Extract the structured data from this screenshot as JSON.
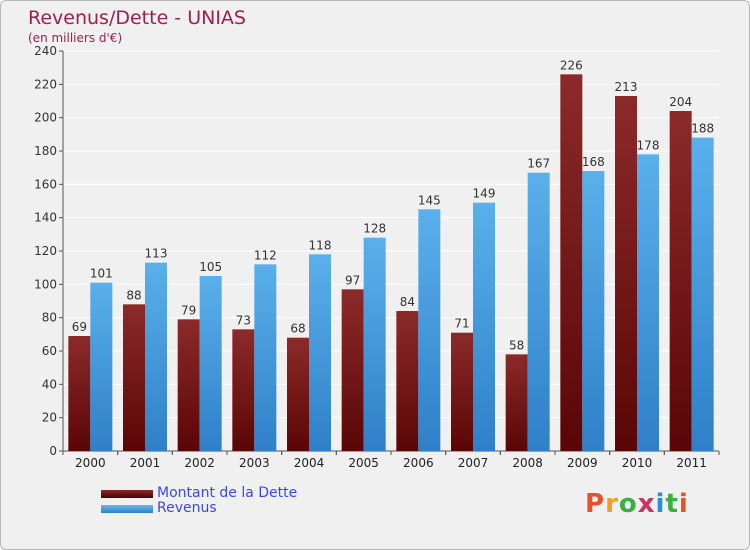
{
  "title": "Revenus/Dette - UNIAS",
  "subtitle": "(en milliers d'€)",
  "logo": {
    "text": "Proxiti",
    "letter_colors": [
      "#e8502a",
      "#f0a020",
      "#3ab040",
      "#d03060",
      "#2a90d0",
      "#3ab040",
      "#e8502a"
    ]
  },
  "colors": {
    "debt": "#7a1a1a",
    "revenue": "#4aa0e0",
    "title": "#a0204a",
    "legend_text": "#3a48e8"
  },
  "chart_data": {
    "type": "bar",
    "title": "Revenus/Dette - UNIAS",
    "ylabel": "(en milliers d'€)",
    "categories": [
      "2000",
      "2001",
      "2002",
      "2003",
      "2004",
      "2005",
      "2006",
      "2007",
      "2008",
      "2009",
      "2010",
      "2011"
    ],
    "series": [
      {
        "name": "Montant de la Dette",
        "values": [
          69,
          88,
          79,
          73,
          68,
          97,
          84,
          71,
          58,
          226,
          213,
          204
        ]
      },
      {
        "name": "Revenus",
        "values": [
          101,
          113,
          105,
          112,
          118,
          128,
          145,
          149,
          167,
          168,
          178,
          188
        ]
      }
    ],
    "ylim": [
      0,
      240
    ],
    "yticks": [
      0,
      20,
      40,
      60,
      80,
      100,
      120,
      140,
      160,
      180,
      200,
      220,
      240
    ],
    "grid": true,
    "legend": "bottom-left"
  }
}
